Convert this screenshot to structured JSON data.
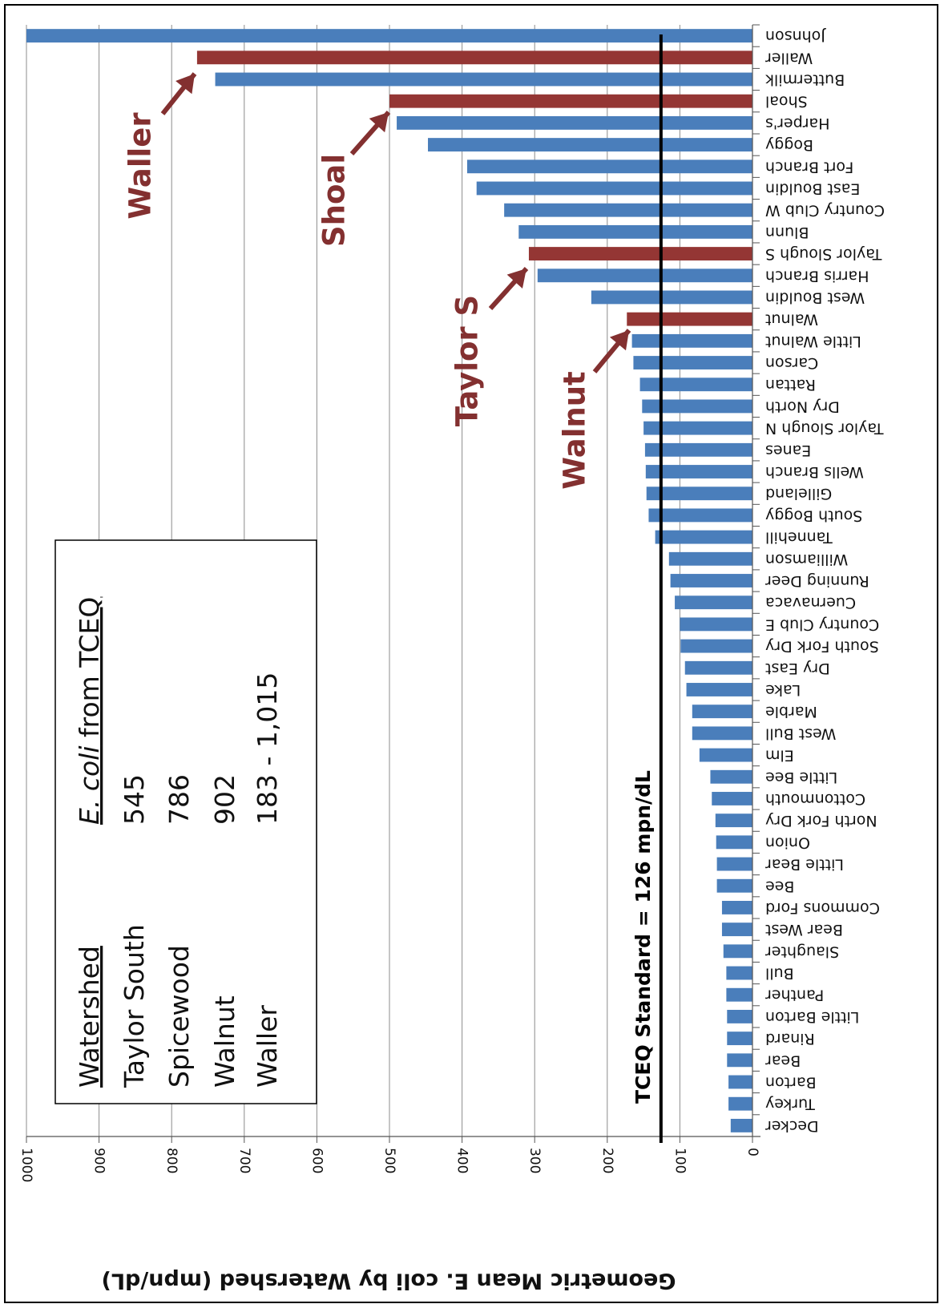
{
  "chart_data": {
    "type": "bar",
    "orientation": "horizontal",
    "ylabel": "Geometric Mean E. coli by Watershed (mpn/dL)",
    "xlim": [
      0,
      1000
    ],
    "ticks": [
      "0",
      "100",
      "200",
      "300",
      "400",
      "500",
      "600",
      "700",
      "800",
      "900",
      "1000"
    ],
    "grid": true,
    "colors": {
      "default": "#4a7ebb",
      "highlight": "#943634",
      "standard_line": "#000000"
    },
    "categories": [
      "Johnson",
      "Waller",
      "Buttermilk",
      "Shoal",
      "Harper's",
      "Boggy",
      "Fort Branch",
      "East Bouldin",
      "Country Club W",
      "Blunn",
      "Taylor Slough S",
      "Harris Branch",
      "West Bouldin",
      "Walnut",
      "Little Walnut",
      "Carson",
      "Rattan",
      "Dry North",
      "Taylor Slough N",
      "Eanes",
      "Wells Branch",
      "Gilleland",
      "South Boggy",
      "Tannehill",
      "Williamson",
      "Running Deer",
      "Cuernavaca",
      "Country Club E",
      "South Fork Dry",
      "Dry East",
      "Lake",
      "Marble",
      "West Bull",
      "Elm",
      "Little Bee",
      "Cottonmouth",
      "North Fork Dry",
      "Onion",
      "Little Bear",
      "Bee",
      "Commons Ford",
      "Bear West",
      "Slaughter",
      "Bull",
      "Panther",
      "Little Barton",
      "Rinard",
      "Bear",
      "Barton",
      "Turkey",
      "Decker"
    ],
    "values": [
      1000,
      765,
      740,
      500,
      490,
      447,
      393,
      380,
      342,
      322,
      308,
      296,
      222,
      173,
      166,
      164,
      155,
      152,
      150,
      148,
      147,
      146,
      143,
      134,
      115,
      113,
      107,
      100,
      99,
      93,
      91,
      83,
      83,
      73,
      58,
      56,
      51,
      50,
      49,
      49,
      42,
      42,
      40,
      36,
      36,
      35,
      35,
      35,
      33,
      33,
      30
    ],
    "highlighted": [
      "Waller",
      "Shoal",
      "Taylor Slough S",
      "Walnut"
    ],
    "reference_line": {
      "value": 126,
      "label": "TCEQ Standard = 126 mpn/dL"
    },
    "annotations": [
      {
        "text": "Waller",
        "target": "Waller"
      },
      {
        "text": "Shoal",
        "target": "Shoal"
      },
      {
        "text": "Taylor S",
        "target": "Taylor Slough S"
      },
      {
        "text": "Walnut",
        "target": "Walnut"
      }
    ],
    "legend_table": {
      "headers": [
        "Watershed",
        "E. coli from TCEQ"
      ],
      "rows": [
        [
          "Taylor South",
          "545"
        ],
        [
          "Spicewood",
          "786"
        ],
        [
          "Walnut",
          "902"
        ],
        [
          "Waller",
          "183 - 1,015"
        ]
      ]
    }
  }
}
